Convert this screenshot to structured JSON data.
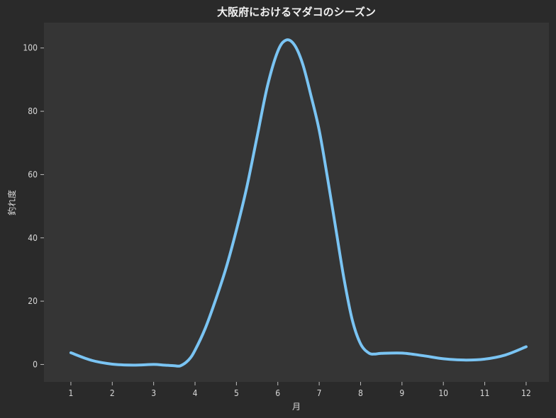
{
  "chart_data": {
    "type": "line",
    "title": "大阪府におけるマダコのシーズン",
    "xlabel": "月",
    "ylabel": "釣れ度",
    "x": [
      1,
      1.5,
      2,
      2.5,
      3,
      3.25,
      3.5,
      3.65,
      3.85,
      4,
      4.25,
      4.5,
      4.75,
      5,
      5.25,
      5.5,
      5.75,
      6,
      6.2,
      6.4,
      6.6,
      6.8,
      7,
      7.2,
      7.4,
      7.6,
      7.8,
      8,
      8.2,
      8.35,
      8.5,
      9,
      9.5,
      10,
      10.5,
      11,
      11.5,
      12
    ],
    "series": [
      {
        "values": [
          3.7,
          1.3,
          0.1,
          -0.2,
          0.0,
          -0.2,
          -0.4,
          -0.4,
          1.5,
          4.5,
          11.5,
          20.5,
          30.5,
          42.5,
          56.0,
          72.0,
          88.0,
          99.0,
          102.5,
          101.0,
          95.0,
          85.0,
          74.0,
          59.0,
          43.0,
          27.0,
          14.0,
          6.5,
          3.6,
          3.3,
          3.5,
          3.6,
          2.8,
          1.8,
          1.4,
          1.7,
          3.0,
          5.6
        ],
        "color": "#7ac4f3"
      }
    ],
    "xlim": [
      0.35,
      12.55
    ],
    "ylim": [
      -5.5,
      108
    ],
    "xticks": [
      "1",
      "2",
      "3",
      "4",
      "5",
      "6",
      "7",
      "8",
      "9",
      "10",
      "11",
      "12"
    ],
    "yticks": [
      "0",
      "20",
      "40",
      "60",
      "80",
      "100"
    ],
    "grid": false,
    "background": "#353535",
    "figure_background": "#2a2a2a"
  }
}
